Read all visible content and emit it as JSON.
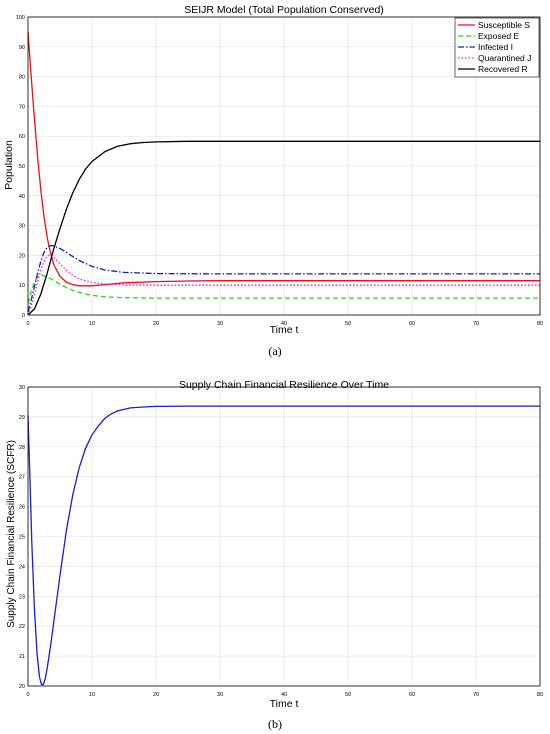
{
  "captions": {
    "a": "(a)",
    "b": "(b)"
  },
  "chart_data": [
    {
      "type": "line",
      "title": "SEIJR Model (Total Population Conserved)",
      "xlabel": "Time t",
      "ylabel": "Population",
      "xlim": [
        0,
        80
      ],
      "ylim": [
        0,
        100
      ],
      "xticks": [
        0,
        10,
        20,
        30,
        40,
        50,
        60,
        70,
        80
      ],
      "yticks": [
        0,
        10,
        20,
        30,
        40,
        50,
        60,
        70,
        80,
        90,
        100
      ],
      "grid": true,
      "legend": "top-right",
      "series": [
        {
          "name": "Susceptible S",
          "color": "#e8101c",
          "dash": "solid",
          "x": [
            0,
            0.5,
            1,
            1.5,
            2,
            2.5,
            3,
            3.5,
            4,
            5,
            6,
            7,
            8,
            10,
            12,
            15,
            20,
            25,
            30,
            40,
            50,
            60,
            70,
            80
          ],
          "y": [
            95,
            80,
            66,
            53,
            42,
            33,
            26,
            21,
            17,
            13,
            11,
            10.2,
            9.8,
            9.8,
            10.2,
            10.8,
            11.2,
            11.4,
            11.5,
            11.5,
            11.5,
            11.5,
            11.5,
            11.5
          ]
        },
        {
          "name": "Exposed E",
          "color": "#22dd22",
          "dash": "dashed",
          "x": [
            0,
            0.5,
            1,
            1.5,
            2,
            2.5,
            3,
            4,
            5,
            6,
            7,
            8,
            10,
            12,
            15,
            20,
            30,
            40,
            50,
            60,
            70,
            80
          ],
          "y": [
            4,
            8,
            11,
            12.8,
            13.3,
            13.2,
            12.8,
            11.6,
            10.3,
            9.2,
            8.3,
            7.6,
            6.6,
            6.1,
            5.8,
            5.7,
            5.7,
            5.7,
            5.7,
            5.7,
            5.7,
            5.7
          ]
        },
        {
          "name": "Infected I",
          "color": "#1a1fb0",
          "dash": "dashdot",
          "x": [
            0,
            0.5,
            1,
            1.5,
            2,
            2.5,
            3,
            3.5,
            4,
            5,
            6,
            7,
            8,
            10,
            12,
            15,
            20,
            30,
            40,
            50,
            60,
            70,
            80
          ],
          "y": [
            1,
            5,
            9.5,
            14,
            18,
            21,
            22.7,
            23.3,
            23.2,
            22.3,
            21,
            19.6,
            18.3,
            16.3,
            15.1,
            14.3,
            13.9,
            13.8,
            13.8,
            13.8,
            13.8,
            13.8,
            13.8
          ]
        },
        {
          "name": "Quarantined J",
          "color": "#e020e0",
          "dash": "dotted",
          "x": [
            0,
            0.5,
            1,
            1.5,
            2,
            2.5,
            3,
            3.5,
            4,
            5,
            6,
            7,
            8,
            10,
            12,
            15,
            20,
            30,
            40,
            50,
            60,
            70,
            80
          ],
          "y": [
            0,
            3,
            7,
            11,
            15,
            18,
            19.8,
            20.2,
            19.5,
            17.2,
            15,
            13.3,
            12.1,
            10.9,
            10.4,
            10.1,
            10,
            10,
            10,
            10,
            10,
            10,
            10
          ]
        },
        {
          "name": "Recovered R",
          "color": "#000000",
          "dash": "solid",
          "x": [
            0,
            1,
            2,
            3,
            4,
            5,
            6,
            7,
            8,
            9,
            10,
            12,
            14,
            16,
            18,
            20,
            25,
            30,
            40,
            50,
            60,
            70,
            80
          ],
          "y": [
            0,
            2,
            7,
            14,
            22,
            29,
            35.5,
            41,
            45.5,
            49,
            51.5,
            54.8,
            56.6,
            57.5,
            57.9,
            58.1,
            58.3,
            58.3,
            58.3,
            58.3,
            58.3,
            58.3,
            58.3
          ]
        }
      ]
    },
    {
      "type": "line",
      "title": "Supply Chain Financial Resilience Over Time",
      "xlabel": "Time t",
      "ylabel": "Supply Chain Financial Resilience (SCFR)",
      "xlim": [
        0,
        80
      ],
      "ylim": [
        20,
        30
      ],
      "xticks": [
        0,
        10,
        20,
        30,
        40,
        50,
        60,
        70,
        80
      ],
      "yticks": [
        20,
        21,
        22,
        23,
        24,
        25,
        26,
        27,
        28,
        29,
        30
      ],
      "grid": true,
      "series": [
        {
          "color": "#1a1fcc",
          "dash": "solid",
          "x": [
            0,
            0.3,
            0.6,
            1,
            1.4,
            1.8,
            2.1,
            2.4,
            2.7,
            3,
            3.5,
            4,
            5,
            6,
            7,
            8,
            9,
            10,
            11,
            12,
            13,
            14,
            15,
            16,
            18,
            20,
            25,
            30,
            40,
            50,
            60,
            70,
            80
          ],
          "y": [
            29.05,
            27,
            24.8,
            22.6,
            21.1,
            20.3,
            20.05,
            20.05,
            20.25,
            20.6,
            21.3,
            22.1,
            23.7,
            25.2,
            26.4,
            27.3,
            27.95,
            28.4,
            28.7,
            28.95,
            29.1,
            29.2,
            29.25,
            29.3,
            29.33,
            29.35,
            29.36,
            29.36,
            29.36,
            29.36,
            29.36,
            29.36,
            29.36
          ]
        }
      ]
    }
  ]
}
